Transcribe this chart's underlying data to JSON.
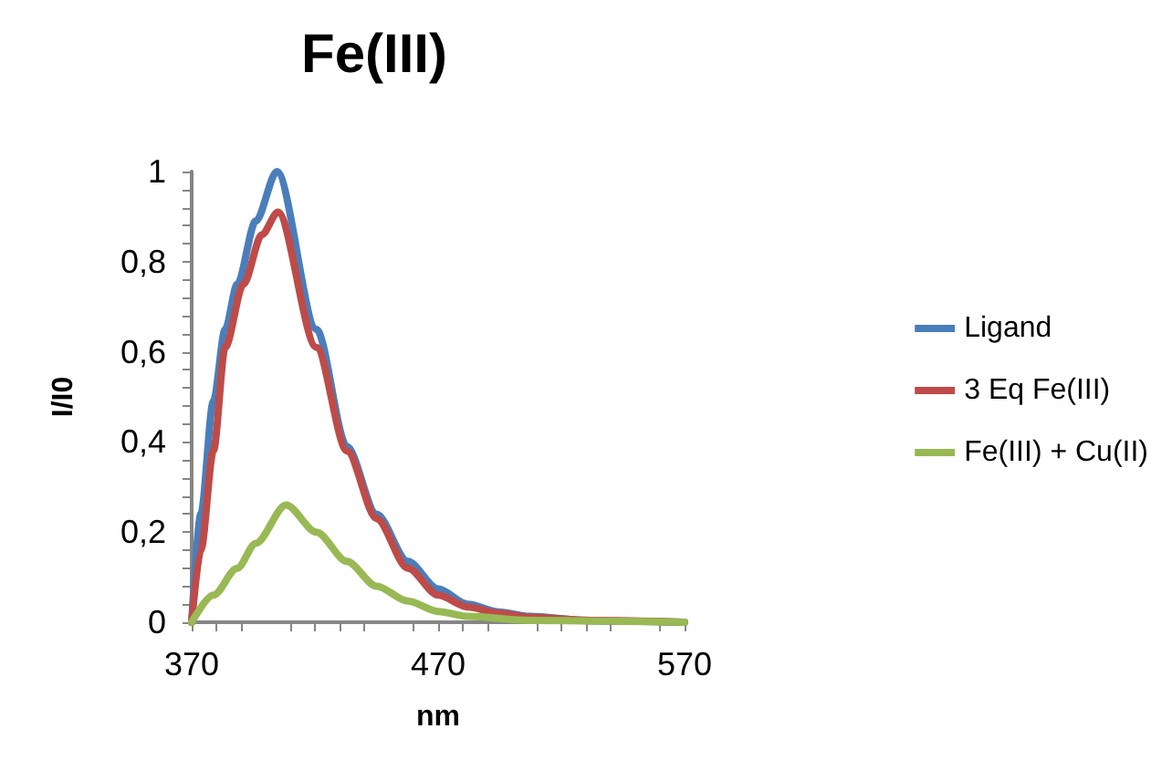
{
  "chart_data": {
    "type": "line",
    "title": "Fe(III)",
    "xlabel": "nm",
    "ylabel": "I/I0",
    "xlim": [
      370,
      570
    ],
    "xticks": [
      370,
      470,
      570
    ],
    "ylim": [
      0,
      1
    ],
    "yticks": [
      0,
      {
        "value": 0.2,
        "label": "0,2"
      },
      {
        "value": 0.4,
        "label": "0,4"
      },
      {
        "value": 0.6,
        "label": "0,6"
      },
      {
        "value": 0.8,
        "label": "0,8"
      },
      1
    ],
    "grid": false,
    "legend": "right",
    "marker": "none",
    "line_style": "solid",
    "series": [
      {
        "name": "Ligand",
        "color": "#4a7ebb",
        "x": [
          370,
          373.7,
          378.8,
          383.6,
          388.5,
          396,
          404.6,
          420.6,
          433,
          445,
          457.7,
          470,
          482,
          494.7,
          507,
          532,
          570
        ],
        "values": [
          0,
          0.24,
          0.49,
          0.65,
          0.75,
          0.89,
          1,
          0.65,
          0.39,
          0.24,
          0.135,
          0.074,
          0.04,
          0.023,
          0.013,
          0.003,
          0
        ]
      },
      {
        "name": "3 Eq Fe(III)",
        "color": "#be4b48",
        "x": [
          370,
          373.7,
          378.8,
          383.6,
          391,
          398.5,
          405,
          420.6,
          433,
          445,
          457.7,
          470,
          482,
          494.7,
          507,
          532,
          570
        ],
        "values": [
          0,
          0.16,
          0.38,
          0.61,
          0.75,
          0.86,
          0.91,
          0.61,
          0.38,
          0.23,
          0.12,
          0.06,
          0.034,
          0.02,
          0.011,
          0.004,
          0
        ]
      },
      {
        "name": "Fe(III) + Cu(II)",
        "color": "#98b954",
        "x": [
          370,
          378.8,
          388.5,
          396,
          408.3,
          420.6,
          433,
          445,
          457.7,
          470,
          482,
          507,
          570
        ],
        "values": [
          0,
          0.06,
          0.12,
          0.175,
          0.26,
          0.2,
          0.135,
          0.08,
          0.047,
          0.024,
          0.013,
          0.004,
          0
        ]
      }
    ]
  }
}
